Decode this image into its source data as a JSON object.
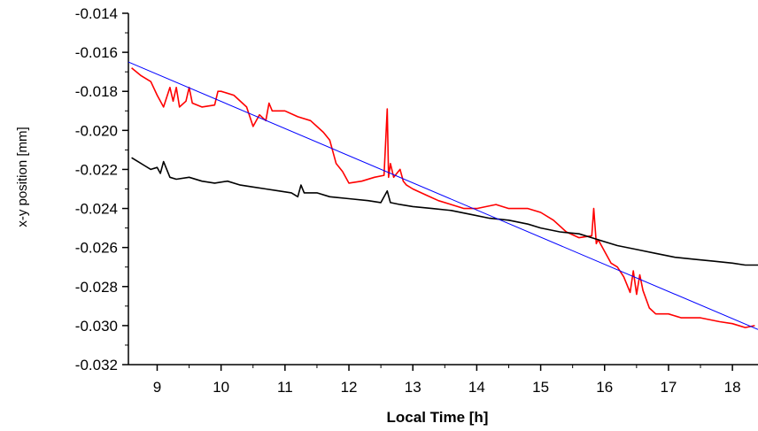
{
  "chart_data": {
    "type": "line",
    "title": "",
    "xlabel": "Local Time [h]",
    "ylabel": "x-y position [mm]",
    "xlim": [
      8.55,
      18.4
    ],
    "ylim": [
      -0.032,
      -0.014
    ],
    "grid": false,
    "legend": "none",
    "x_ticks": [
      9,
      10,
      11,
      12,
      13,
      14,
      15,
      16,
      17,
      18
    ],
    "x_tick_labels": [
      "9",
      "10",
      "11",
      "12",
      "13",
      "14",
      "15",
      "16",
      "17",
      "18"
    ],
    "y_ticks": [
      -0.032,
      -0.03,
      -0.028,
      -0.026,
      -0.024,
      -0.022,
      -0.02,
      -0.018,
      -0.016,
      -0.014
    ],
    "y_tick_labels": [
      "-0.032",
      "-0.030",
      "-0.028",
      "-0.026",
      "-0.024",
      "-0.022",
      "-0.020",
      "-0.018",
      "-0.016",
      "-0.014"
    ],
    "series": [
      {
        "color": "#ff0000",
        "x": [
          8.6,
          8.75,
          8.9,
          9.0,
          9.1,
          9.2,
          9.25,
          9.3,
          9.35,
          9.45,
          9.5,
          9.55,
          9.7,
          9.9,
          9.95,
          10.0,
          10.2,
          10.4,
          10.5,
          10.6,
          10.7,
          10.75,
          10.8,
          11.0,
          11.2,
          11.4,
          11.6,
          11.7,
          11.8,
          11.9,
          12.0,
          12.2,
          12.4,
          12.55,
          12.6,
          12.62,
          12.65,
          12.7,
          12.8,
          12.85,
          12.9,
          13.0,
          13.2,
          13.4,
          13.6,
          13.8,
          14.0,
          14.3,
          14.5,
          14.8,
          15.0,
          15.2,
          15.4,
          15.6,
          15.8,
          15.83,
          15.87,
          15.9,
          16.0,
          16.1,
          16.2,
          16.3,
          16.4,
          16.45,
          16.5,
          16.55,
          16.6,
          16.7,
          16.8,
          17.0,
          17.2,
          17.5,
          17.8,
          18.0,
          18.2,
          18.35
        ],
        "y": [
          -0.0168,
          -0.0172,
          -0.0175,
          -0.0182,
          -0.0188,
          -0.0178,
          -0.0185,
          -0.0178,
          -0.0188,
          -0.0185,
          -0.0178,
          -0.0186,
          -0.0188,
          -0.0187,
          -0.018,
          -0.018,
          -0.0182,
          -0.0188,
          -0.0198,
          -0.0192,
          -0.0195,
          -0.0186,
          -0.019,
          -0.019,
          -0.0193,
          -0.0195,
          -0.0201,
          -0.0205,
          -0.0217,
          -0.0221,
          -0.0227,
          -0.0226,
          -0.0224,
          -0.0223,
          -0.0189,
          -0.0224,
          -0.0217,
          -0.0224,
          -0.022,
          -0.0226,
          -0.0228,
          -0.023,
          -0.0233,
          -0.0236,
          -0.0238,
          -0.024,
          -0.024,
          -0.0238,
          -0.024,
          -0.024,
          -0.0242,
          -0.0246,
          -0.0252,
          -0.0255,
          -0.0254,
          -0.024,
          -0.0258,
          -0.0256,
          -0.0262,
          -0.0268,
          -0.027,
          -0.0275,
          -0.0283,
          -0.0272,
          -0.0284,
          -0.0274,
          -0.0282,
          -0.0291,
          -0.0294,
          -0.0294,
          -0.0296,
          -0.0296,
          -0.0298,
          -0.0299,
          -0.0301,
          -0.03
        ]
      },
      {
        "color": "#000000",
        "x": [
          8.6,
          8.7,
          8.8,
          8.9,
          9.0,
          9.05,
          9.1,
          9.2,
          9.3,
          9.5,
          9.7,
          9.9,
          10.1,
          10.3,
          10.5,
          10.7,
          10.9,
          11.1,
          11.2,
          11.25,
          11.3,
          11.5,
          11.7,
          12.0,
          12.3,
          12.5,
          12.6,
          12.65,
          12.8,
          13.0,
          13.3,
          13.6,
          13.9,
          14.2,
          14.5,
          14.8,
          15.0,
          15.3,
          15.6,
          15.8,
          16.0,
          16.2,
          16.5,
          16.8,
          17.1,
          17.4,
          17.7,
          18.0,
          18.2,
          18.4
        ],
        "y": [
          -0.0214,
          -0.0216,
          -0.0218,
          -0.022,
          -0.0219,
          -0.0222,
          -0.0216,
          -0.0224,
          -0.0225,
          -0.0224,
          -0.0226,
          -0.0227,
          -0.0226,
          -0.0228,
          -0.0229,
          -0.023,
          -0.0231,
          -0.0232,
          -0.0234,
          -0.0228,
          -0.0232,
          -0.0232,
          -0.0234,
          -0.0235,
          -0.0236,
          -0.0237,
          -0.0231,
          -0.0237,
          -0.0238,
          -0.0239,
          -0.024,
          -0.0241,
          -0.0243,
          -0.0245,
          -0.0246,
          -0.0248,
          -0.025,
          -0.0252,
          -0.0253,
          -0.0255,
          -0.0257,
          -0.0259,
          -0.0261,
          -0.0263,
          -0.0265,
          -0.0266,
          -0.0267,
          -0.0268,
          -0.0269,
          -0.0269
        ]
      },
      {
        "color": "#0000ff",
        "x": [
          8.55,
          18.4
        ],
        "y": [
          -0.0165,
          -0.0302
        ]
      }
    ]
  }
}
